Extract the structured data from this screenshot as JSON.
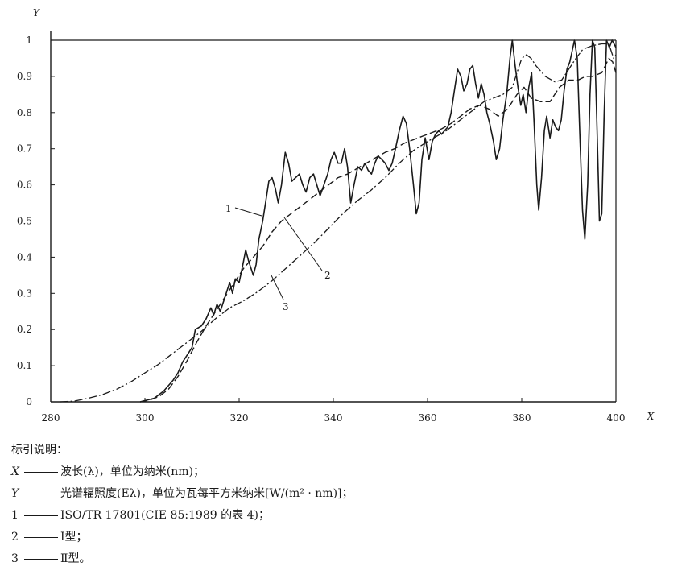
{
  "chart_data": {
    "type": "line",
    "xlabel": "X",
    "ylabel": "Y",
    "xlim": [
      280,
      400
    ],
    "ylim": [
      0,
      1
    ],
    "x_ticks": [
      "280",
      "300",
      "320",
      "340",
      "360",
      "380",
      "400"
    ],
    "y_ticks": [
      "0",
      "0.1",
      "0.2",
      "0.3",
      "0.4",
      "0.5",
      "0.6",
      "0.7",
      "0.8",
      "0.9",
      "1"
    ],
    "grid": false,
    "series": [
      {
        "name": "1",
        "style": "solid",
        "points": [
          [
            299,
            0
          ],
          [
            302,
            0.01
          ],
          [
            304,
            0.03
          ],
          [
            306,
            0.06
          ],
          [
            307,
            0.08
          ],
          [
            308,
            0.11
          ],
          [
            309,
            0.13
          ],
          [
            310,
            0.15
          ],
          [
            310.7,
            0.2
          ],
          [
            312,
            0.21
          ],
          [
            313,
            0.23
          ],
          [
            314,
            0.26
          ],
          [
            314.6,
            0.24
          ],
          [
            315.3,
            0.27
          ],
          [
            316,
            0.25
          ],
          [
            317,
            0.29
          ],
          [
            318,
            0.33
          ],
          [
            318.6,
            0.3
          ],
          [
            319.2,
            0.34
          ],
          [
            320,
            0.33
          ],
          [
            320.8,
            0.38
          ],
          [
            321.4,
            0.42
          ],
          [
            322,
            0.39
          ],
          [
            323,
            0.35
          ],
          [
            323.6,
            0.38
          ],
          [
            324.2,
            0.45
          ],
          [
            325,
            0.5
          ],
          [
            325.6,
            0.55
          ],
          [
            326.3,
            0.61
          ],
          [
            327,
            0.62
          ],
          [
            327.7,
            0.59
          ],
          [
            328.3,
            0.55
          ],
          [
            329,
            0.6
          ],
          [
            329.8,
            0.69
          ],
          [
            330.5,
            0.66
          ],
          [
            331.2,
            0.61
          ],
          [
            332,
            0.62
          ],
          [
            332.8,
            0.63
          ],
          [
            333.5,
            0.6
          ],
          [
            334.2,
            0.58
          ],
          [
            335,
            0.62
          ],
          [
            335.8,
            0.63
          ],
          [
            336.5,
            0.6
          ],
          [
            337.2,
            0.57
          ],
          [
            338,
            0.6
          ],
          [
            338.8,
            0.63
          ],
          [
            339.5,
            0.67
          ],
          [
            340.2,
            0.69
          ],
          [
            341,
            0.66
          ],
          [
            341.7,
            0.66
          ],
          [
            342.4,
            0.7
          ],
          [
            343,
            0.65
          ],
          [
            343.7,
            0.55
          ],
          [
            344.4,
            0.6
          ],
          [
            345.2,
            0.65
          ],
          [
            346,
            0.64
          ],
          [
            346.7,
            0.66
          ],
          [
            347.4,
            0.64
          ],
          [
            348.1,
            0.63
          ],
          [
            348.8,
            0.66
          ],
          [
            349.5,
            0.68
          ],
          [
            350.3,
            0.67
          ],
          [
            351,
            0.66
          ],
          [
            351.8,
            0.64
          ],
          [
            352.5,
            0.66
          ],
          [
            353.2,
            0.7
          ],
          [
            354,
            0.75
          ],
          [
            354.8,
            0.79
          ],
          [
            355.5,
            0.77
          ],
          [
            356.2,
            0.7
          ],
          [
            357,
            0.6
          ],
          [
            357.6,
            0.52
          ],
          [
            358.2,
            0.55
          ],
          [
            358.8,
            0.67
          ],
          [
            359.5,
            0.73
          ],
          [
            360.3,
            0.67
          ],
          [
            361,
            0.72
          ],
          [
            361.7,
            0.74
          ],
          [
            362.4,
            0.75
          ],
          [
            363,
            0.74
          ],
          [
            363.6,
            0.75
          ],
          [
            364.3,
            0.76
          ],
          [
            365,
            0.8
          ],
          [
            365.7,
            0.86
          ],
          [
            366.4,
            0.92
          ],
          [
            367.1,
            0.9
          ],
          [
            367.7,
            0.86
          ],
          [
            368.4,
            0.88
          ],
          [
            369,
            0.92
          ],
          [
            369.6,
            0.93
          ],
          [
            370.2,
            0.88
          ],
          [
            370.8,
            0.84
          ],
          [
            371.4,
            0.88
          ],
          [
            372,
            0.85
          ],
          [
            372.6,
            0.8
          ],
          [
            373.2,
            0.77
          ],
          [
            374,
            0.72
          ],
          [
            374.6,
            0.67
          ],
          [
            375.3,
            0.7
          ],
          [
            376,
            0.78
          ],
          [
            376.8,
            0.85
          ],
          [
            377.5,
            0.95
          ],
          [
            378,
            1.0
          ],
          [
            378.6,
            0.93
          ],
          [
            379.2,
            0.87
          ],
          [
            379.8,
            0.82
          ],
          [
            380.3,
            0.85
          ],
          [
            380.9,
            0.8
          ],
          [
            381.5,
            0.87
          ],
          [
            382.1,
            0.91
          ],
          [
            382.6,
            0.78
          ],
          [
            383.2,
            0.6
          ],
          [
            383.6,
            0.53
          ],
          [
            384.2,
            0.62
          ],
          [
            384.8,
            0.75
          ],
          [
            385.3,
            0.79
          ],
          [
            386,
            0.73
          ],
          [
            386.6,
            0.78
          ],
          [
            387.2,
            0.76
          ],
          [
            387.8,
            0.75
          ],
          [
            388.4,
            0.78
          ],
          [
            389,
            0.86
          ],
          [
            389.6,
            0.92
          ],
          [
            390.2,
            0.94
          ],
          [
            390.7,
            0.97
          ],
          [
            391.2,
            1.0
          ],
          [
            391.8,
            0.95
          ],
          [
            392.3,
            0.75
          ],
          [
            392.9,
            0.53
          ],
          [
            393.4,
            0.45
          ],
          [
            394,
            0.6
          ],
          [
            394.5,
            0.85
          ],
          [
            395,
            1.0
          ],
          [
            395.5,
            0.98
          ],
          [
            396,
            0.75
          ],
          [
            396.5,
            0.5
          ],
          [
            397,
            0.52
          ],
          [
            397.5,
            0.8
          ],
          [
            398,
            1.0
          ],
          [
            398.6,
            0.98
          ],
          [
            399.2,
            1.0
          ],
          [
            400,
            0.98
          ]
        ]
      },
      {
        "name": "2",
        "style": "dashed",
        "points": [
          [
            299,
            0
          ],
          [
            301,
            0.005
          ],
          [
            303,
            0.015
          ],
          [
            305,
            0.035
          ],
          [
            307,
            0.07
          ],
          [
            309,
            0.115
          ],
          [
            311,
            0.165
          ],
          [
            313,
            0.21
          ],
          [
            315,
            0.25
          ],
          [
            317,
            0.29
          ],
          [
            319,
            0.33
          ],
          [
            321,
            0.37
          ],
          [
            323,
            0.4
          ],
          [
            325,
            0.43
          ],
          [
            327,
            0.47
          ],
          [
            329,
            0.5
          ],
          [
            331,
            0.52
          ],
          [
            333,
            0.54
          ],
          [
            335,
            0.56
          ],
          [
            337,
            0.58
          ],
          [
            339,
            0.6
          ],
          [
            341,
            0.62
          ],
          [
            343,
            0.63
          ],
          [
            345,
            0.645
          ],
          [
            347,
            0.66
          ],
          [
            349,
            0.675
          ],
          [
            351,
            0.69
          ],
          [
            353,
            0.7
          ],
          [
            355,
            0.715
          ],
          [
            357,
            0.725
          ],
          [
            359,
            0.735
          ],
          [
            361,
            0.745
          ],
          [
            363,
            0.755
          ],
          [
            365,
            0.77
          ],
          [
            367,
            0.79
          ],
          [
            369,
            0.81
          ],
          [
            371,
            0.82
          ],
          [
            373,
            0.81
          ],
          [
            375,
            0.79
          ],
          [
            377,
            0.81
          ],
          [
            379,
            0.85
          ],
          [
            380.5,
            0.87
          ],
          [
            382,
            0.84
          ],
          [
            384,
            0.83
          ],
          [
            386,
            0.83
          ],
          [
            388,
            0.87
          ],
          [
            390,
            0.89
          ],
          [
            392,
            0.89
          ],
          [
            393.5,
            0.9
          ],
          [
            395,
            0.9
          ],
          [
            397,
            0.91
          ],
          [
            398.5,
            0.95
          ],
          [
            399.3,
            0.94
          ],
          [
            400,
            0.91
          ]
        ]
      },
      {
        "name": "3",
        "style": "dash-dot",
        "points": [
          [
            282,
            0
          ],
          [
            285,
            0.002
          ],
          [
            288,
            0.01
          ],
          [
            291,
            0.02
          ],
          [
            294,
            0.035
          ],
          [
            297,
            0.055
          ],
          [
            300,
            0.08
          ],
          [
            303,
            0.105
          ],
          [
            306,
            0.135
          ],
          [
            309,
            0.165
          ],
          [
            312,
            0.195
          ],
          [
            315,
            0.23
          ],
          [
            318,
            0.26
          ],
          [
            321,
            0.28
          ],
          [
            324,
            0.305
          ],
          [
            327,
            0.335
          ],
          [
            330,
            0.37
          ],
          [
            333,
            0.405
          ],
          [
            336,
            0.44
          ],
          [
            339,
            0.48
          ],
          [
            342,
            0.52
          ],
          [
            345,
            0.555
          ],
          [
            348,
            0.585
          ],
          [
            351,
            0.62
          ],
          [
            354,
            0.66
          ],
          [
            357,
            0.695
          ],
          [
            360,
            0.72
          ],
          [
            362,
            0.735
          ],
          [
            364,
            0.75
          ],
          [
            366,
            0.77
          ],
          [
            368,
            0.79
          ],
          [
            370,
            0.81
          ],
          [
            372,
            0.83
          ],
          [
            374,
            0.84
          ],
          [
            376,
            0.85
          ],
          [
            378,
            0.87
          ],
          [
            379,
            0.91
          ],
          [
            380,
            0.95
          ],
          [
            381,
            0.96
          ],
          [
            382,
            0.95
          ],
          [
            383,
            0.93
          ],
          [
            385,
            0.9
          ],
          [
            387,
            0.885
          ],
          [
            388.5,
            0.89
          ],
          [
            390,
            0.92
          ],
          [
            391.5,
            0.95
          ],
          [
            393,
            0.975
          ],
          [
            395,
            0.985
          ],
          [
            397,
            0.99
          ],
          [
            398.5,
            0.99
          ],
          [
            399.5,
            0.95
          ],
          [
            400,
            0.96
          ]
        ]
      }
    ]
  },
  "legend": {
    "title": "标引说明：",
    "rows": [
      {
        "key": "X",
        "italic": true,
        "text": "波长(λ)，单位为纳米(nm)；"
      },
      {
        "key": "Y",
        "italic": true,
        "text": "光谱辐照度(Eλ)，单位为瓦每平方米纳米[W/(m² · nm)]；"
      },
      {
        "key": "1",
        "italic": false,
        "text": "ISO/TR 17801(CIE 85:1989 的表 4)；"
      },
      {
        "key": "2",
        "italic": false,
        "text": "Ⅰ型；"
      },
      {
        "key": "3",
        "italic": false,
        "text": "Ⅱ型。"
      }
    ]
  }
}
